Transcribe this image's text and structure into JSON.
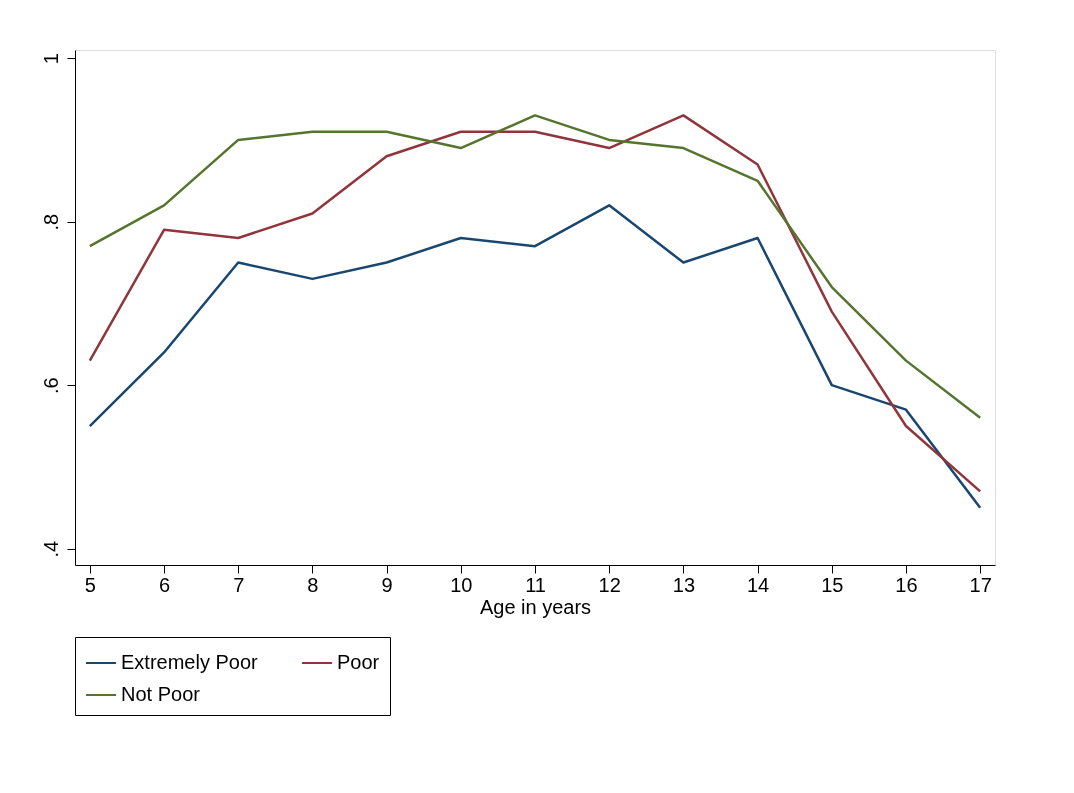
{
  "chart_data": {
    "type": "line",
    "xlabel": "Age in years",
    "x": [
      5,
      6,
      7,
      8,
      9,
      10,
      11,
      12,
      13,
      14,
      15,
      16,
      17
    ],
    "series": [
      {
        "name": "Extremely Poor",
        "color": "#1a476f",
        "values": [
          0.55,
          0.64,
          0.75,
          0.73,
          0.75,
          0.78,
          0.77,
          0.82,
          0.75,
          0.78,
          0.6,
          0.57,
          0.45
        ]
      },
      {
        "name": "Poor",
        "color": "#90353b",
        "values": [
          0.63,
          0.79,
          0.78,
          0.81,
          0.88,
          0.91,
          0.91,
          0.89,
          0.93,
          0.87,
          0.69,
          0.55,
          0.47
        ]
      },
      {
        "name": "Not Poor",
        "color": "#55752f",
        "values": [
          0.77,
          0.82,
          0.9,
          0.91,
          0.91,
          0.89,
          0.93,
          0.9,
          0.89,
          0.85,
          0.72,
          0.63,
          0.56
        ]
      }
    ],
    "xlim": [
      4.8,
      17.2
    ],
    "xticks": [
      5,
      6,
      7,
      8,
      9,
      10,
      11,
      12,
      13,
      14,
      15,
      16,
      17
    ],
    "ylim": [
      0.38,
      1.01
    ],
    "yticks": [
      {
        "value": 0.4,
        "label": ".4"
      },
      {
        "value": 0.6,
        "label": ".6"
      },
      {
        "value": 0.8,
        "label": ".8"
      },
      {
        "value": 1,
        "label": "1"
      }
    ],
    "grid": false,
    "legend": "bottom",
    "marker": "none",
    "line_style": "solid"
  }
}
